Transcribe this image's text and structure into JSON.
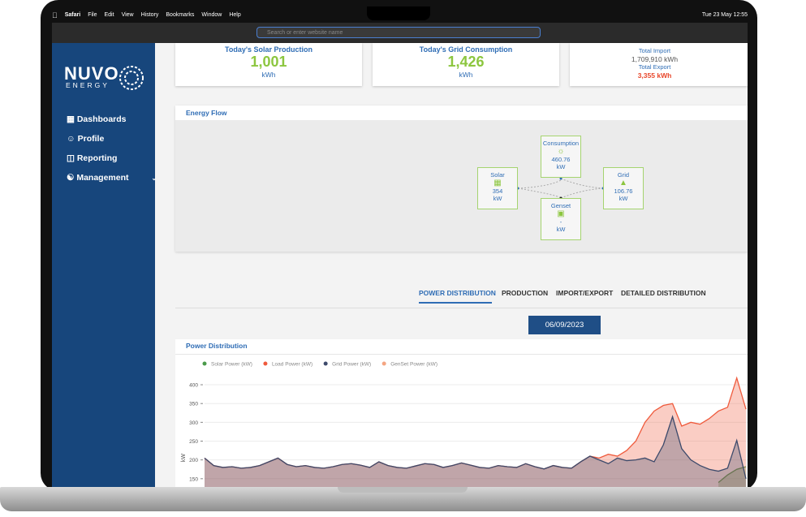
{
  "menubar": {
    "items": [
      "Safari",
      "File",
      "Edit",
      "View",
      "History",
      "Bookmarks",
      "Window",
      "Help"
    ],
    "clock": "Tue 23 May  12:55"
  },
  "browser": {
    "address_placeholder": "Search or enter website name"
  },
  "sidebar": {
    "logo_top": "NUVO",
    "logo_bottom": "ENERGY",
    "nav": [
      "Dashboards",
      "Profile",
      "Reporting",
      "Management"
    ]
  },
  "cards": [
    {
      "title": "Today's Solar Production",
      "value": "1,001",
      "unit": "kWh"
    },
    {
      "title": "Today's Grid Consumption",
      "value": "1,426",
      "unit": "kWh"
    },
    {
      "import_label": "Total Import",
      "import_value": "1,709,910 kWh",
      "export_label": "Total Export",
      "export_value": "3,355 kWh"
    }
  ],
  "energy_flow": {
    "title": "Energy Flow",
    "nodes": [
      {
        "label": "Solar",
        "value": "354",
        "unit": "kW"
      },
      {
        "label": "Consumption",
        "value": "460.76",
        "unit": "kW"
      },
      {
        "label": "Grid",
        "value": "106.76",
        "unit": "kW"
      },
      {
        "label": "Genset",
        "value": "-",
        "unit": "kW"
      }
    ]
  },
  "tabs": [
    "POWER DISTRIBUTION",
    "PRODUCTION",
    "IMPORT/EXPORT",
    "DETAILED DISTRIBUTION"
  ],
  "date": "06/09/2023",
  "chart_data": {
    "type": "area",
    "title": "Power Distribution",
    "y_label": "kW",
    "ylim": [
      128,
      426
    ],
    "yticks": [
      150,
      200,
      250,
      300,
      350,
      400
    ],
    "series": [
      {
        "name": "Solar Power (kW)",
        "color": "#4a9a4a",
        "values": [
          null,
          null,
          null,
          null,
          null,
          null,
          null,
          null,
          null,
          null,
          null,
          null,
          null,
          null,
          null,
          null,
          null,
          null,
          null,
          null,
          null,
          null,
          null,
          null,
          null,
          null,
          null,
          null,
          null,
          null,
          null,
          null,
          null,
          null,
          null,
          null,
          null,
          null,
          null,
          null,
          null,
          null,
          null,
          null,
          null,
          null,
          null,
          null,
          null,
          null,
          null,
          null,
          null,
          null,
          null,
          null,
          140,
          160,
          175,
          182
        ]
      },
      {
        "name": "Load Power (kW)",
        "color": "#ef5a3c",
        "values": [
          205,
          185,
          180,
          182,
          178,
          180,
          185,
          195,
          205,
          188,
          182,
          185,
          180,
          178,
          182,
          188,
          190,
          186,
          180,
          195,
          185,
          180,
          178,
          184,
          190,
          188,
          180,
          185,
          192,
          186,
          180,
          178,
          185,
          182,
          180,
          190,
          182,
          176,
          185,
          180,
          178,
          195,
          210,
          205,
          215,
          210,
          225,
          250,
          300,
          330,
          345,
          350,
          290,
          300,
          295,
          310,
          330,
          340,
          418,
          335
        ]
      },
      {
        "name": "Grid Power (kW)",
        "color": "#3d4a6b",
        "values": [
          205,
          185,
          180,
          182,
          178,
          180,
          185,
          195,
          205,
          188,
          182,
          185,
          180,
          178,
          182,
          188,
          190,
          186,
          180,
          195,
          185,
          180,
          178,
          184,
          190,
          188,
          180,
          185,
          192,
          186,
          180,
          178,
          185,
          182,
          180,
          190,
          182,
          176,
          185,
          180,
          178,
          195,
          210,
          200,
          190,
          205,
          198,
          200,
          205,
          195,
          240,
          315,
          230,
          200,
          185,
          175,
          170,
          178,
          252,
          150
        ]
      },
      {
        "name": "GenSet Power (kW)",
        "color": "#f4a582",
        "values": [
          null,
          null,
          null,
          null,
          null,
          null,
          null,
          null,
          null,
          null,
          null,
          null,
          null,
          null,
          null,
          null,
          null,
          null,
          null,
          null,
          null,
          null,
          null,
          null,
          null,
          null,
          null,
          null,
          null,
          null,
          null,
          null,
          null,
          null,
          null,
          null,
          null,
          null,
          null,
          null,
          null,
          null,
          null,
          null,
          null,
          null,
          null,
          null,
          null,
          null,
          null,
          null,
          null,
          null,
          null,
          null,
          null,
          null,
          null,
          null
        ]
      }
    ]
  }
}
